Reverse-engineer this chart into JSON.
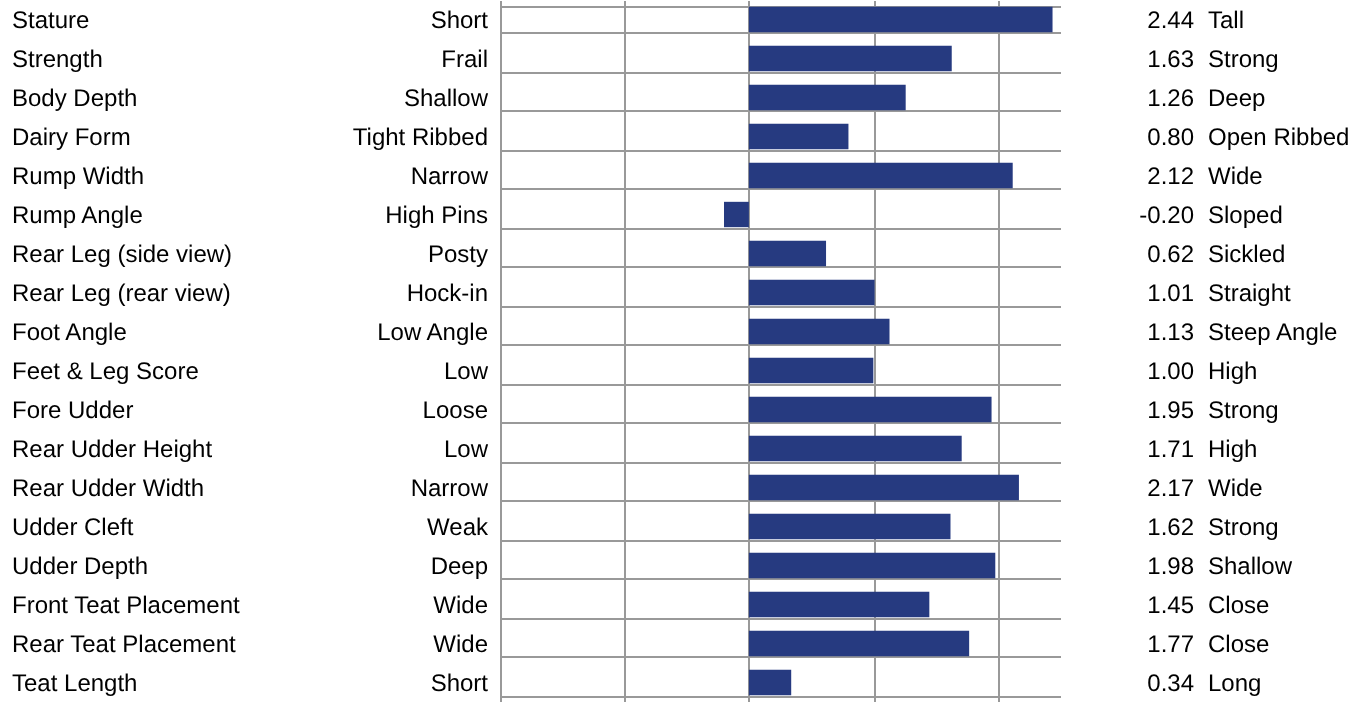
{
  "chart_data": {
    "type": "bar",
    "orientation": "horizontal",
    "categories": [
      "Stature",
      "Strength",
      "Body Depth",
      "Dairy Form",
      "Rump Width",
      "Rump Angle",
      "Rear Leg (side view)",
      "Rear Leg (rear view)",
      "Foot Angle",
      "Feet & Leg Score",
      "Fore Udder",
      "Rear Udder Height",
      "Rear Udder Width",
      "Udder Cleft",
      "Udder Depth",
      "Front Teat Placement",
      "Rear Teat Placement",
      "Teat Length"
    ],
    "values": [
      2.44,
      1.63,
      1.26,
      0.8,
      2.12,
      -0.2,
      0.62,
      1.01,
      1.13,
      1.0,
      1.95,
      1.71,
      2.17,
      1.62,
      1.98,
      1.45,
      1.77,
      0.34
    ],
    "value_labels": [
      "2.44",
      "1.63",
      "1.26",
      "0.80",
      "2.12",
      "-0.20",
      "0.62",
      "1.01",
      "1.13",
      "1.00",
      "1.95",
      "1.71",
      "2.17",
      "1.62",
      "1.98",
      "1.45",
      "1.77",
      "0.34"
    ],
    "color": "#263a80",
    "xlim": [
      -2,
      2.5
    ],
    "xticks": [
      {
        "value": -2,
        "label": null
      },
      {
        "value": -1,
        "label": null
      },
      {
        "value": 0,
        "label": null
      },
      {
        "value": 1,
        "label": null
      },
      {
        "value": 2,
        "label": null
      }
    ],
    "grid": "x",
    "y2_categories": [
      "Tall",
      "Strong",
      "Deep",
      "Open Ribbed",
      "Wide",
      "Sloped",
      "Sickled",
      "Straight",
      "Steep Angle",
      "High",
      "Strong",
      "High",
      "Wide",
      "Strong",
      "Shallow",
      "Close",
      "Close",
      "Long"
    ],
    "annotations": [
      "Short",
      "Frail",
      "Shallow",
      "Tight Ribbed",
      "Narrow",
      "High Pins",
      "Posty",
      "Hock-in",
      "Low Angle",
      "Low",
      "Loose",
      "Low",
      "Narrow",
      "Weak",
      "Deep",
      "Wide",
      "Wide",
      "Short"
    ]
  }
}
